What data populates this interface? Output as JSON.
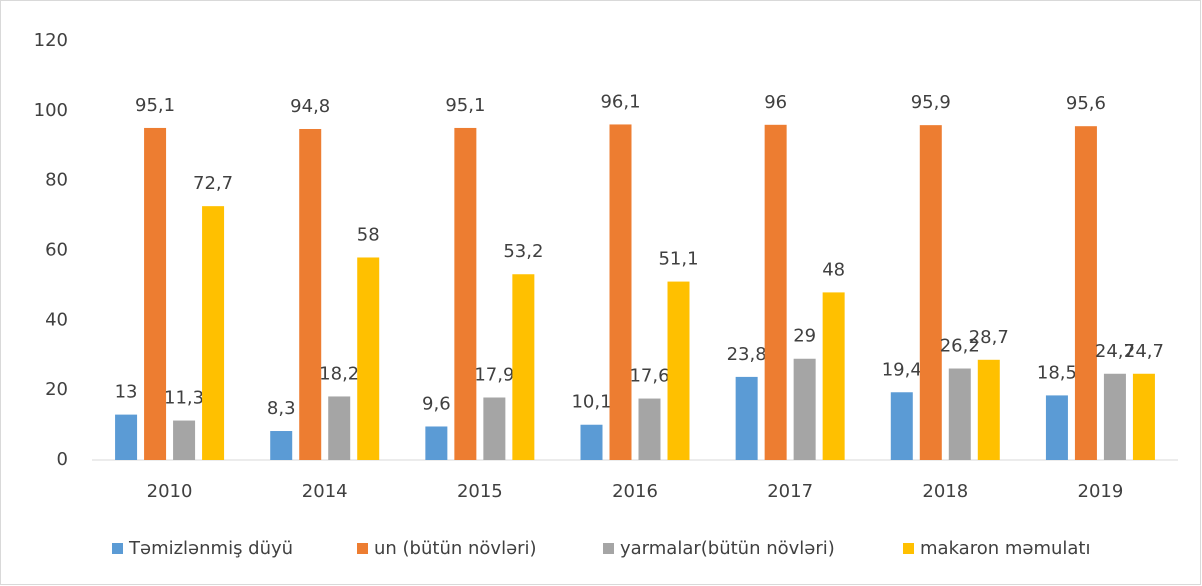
{
  "chart_data": {
    "type": "bar",
    "categories": [
      "2010",
      "2014",
      "2015",
      "2016",
      "2017",
      "2018",
      "2019"
    ],
    "series": [
      {
        "name": "Təmizlənmiş düyü",
        "color": "#5b9bd5",
        "values": [
          13,
          8.3,
          9.6,
          10.1,
          23.8,
          19.4,
          18.5
        ],
        "value_labels": [
          "13",
          "8,3",
          "9,6",
          "10,1",
          "23,8",
          "19,4",
          "18,5"
        ]
      },
      {
        "name": "un (bütün növləri)",
        "color": "#ed7d31",
        "values": [
          95.1,
          94.8,
          95.1,
          96.1,
          96,
          95.9,
          95.6
        ],
        "value_labels": [
          "95,1",
          "94,8",
          "95,1",
          "96,1",
          "96",
          "95,9",
          "95,6"
        ]
      },
      {
        "name": "yarmalar(bütün növləri)",
        "color": "#a5a5a5",
        "values": [
          11.3,
          18.2,
          17.9,
          17.6,
          29,
          26.2,
          24.7
        ],
        "value_labels": [
          "11,3",
          "18,2",
          "17,9",
          "17,6",
          "29",
          "26,2",
          "24,7"
        ]
      },
      {
        "name": "makaron məmulatı",
        "color": "#ffc000",
        "values": [
          72.7,
          58,
          53.2,
          51.1,
          48,
          28.7,
          24.7
        ],
        "value_labels": [
          "72,7",
          "58",
          "53,2",
          "51,1",
          "48",
          "28,7",
          "24,7"
        ]
      }
    ],
    "ylim": [
      0,
      120
    ],
    "yticks": [
      0,
      20,
      40,
      60,
      80,
      100,
      120
    ],
    "grid": false,
    "legend": "bottom"
  }
}
